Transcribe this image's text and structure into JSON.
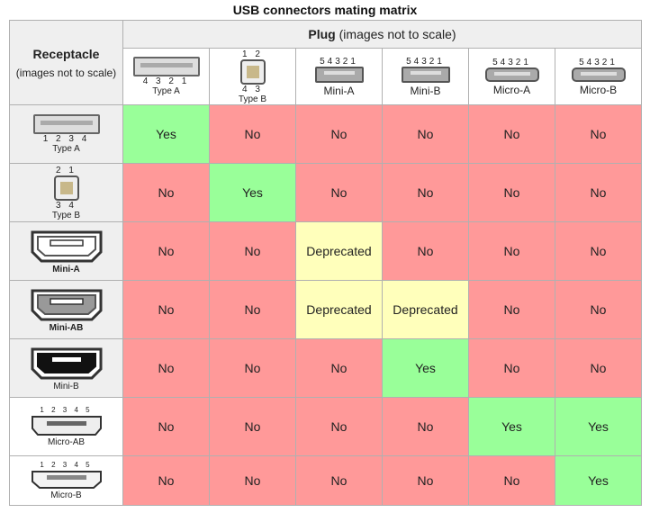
{
  "title": "USB connectors mating matrix",
  "corner": {
    "title": "Receptacle",
    "subtitle": "(images not to scale)"
  },
  "plug_header": {
    "title": "Plug",
    "subtitle": "(images not to scale)"
  },
  "plugs": [
    {
      "label": "Type A",
      "pins": "4 3 2 1"
    },
    {
      "label": "Type B",
      "pins_top": "1 2",
      "pins_bottom": "4 3"
    },
    {
      "label": "Mini-A",
      "pins": "54321"
    },
    {
      "label": "Mini-B",
      "pins": "54321"
    },
    {
      "label": "Micro-A",
      "pins": "54321"
    },
    {
      "label": "Micro-B",
      "pins": "54321"
    }
  ],
  "receptacles": [
    {
      "label": "Type A",
      "pins": "1 2 3 4",
      "cells": [
        "Yes",
        "No",
        "No",
        "No",
        "No",
        "No"
      ]
    },
    {
      "label": "Type B",
      "pins_top": "2 1",
      "pins_bottom": "3 4",
      "cells": [
        "No",
        "Yes",
        "No",
        "No",
        "No",
        "No"
      ]
    },
    {
      "label": "Mini-A",
      "cells": [
        "No",
        "No",
        "Deprecated",
        "No",
        "No",
        "No"
      ]
    },
    {
      "label": "Mini-AB",
      "cells": [
        "No",
        "No",
        "Deprecated",
        "Deprecated",
        "No",
        "No"
      ]
    },
    {
      "label": "Mini-B",
      "cells": [
        "No",
        "No",
        "No",
        "Yes",
        "No",
        "No"
      ]
    },
    {
      "label": "Micro-AB",
      "pins": "1 2 3 4 5",
      "cells": [
        "No",
        "No",
        "No",
        "No",
        "Yes",
        "Yes"
      ]
    },
    {
      "label": "Micro-B",
      "pins": "1 2 3 4 5",
      "cells": [
        "No",
        "No",
        "No",
        "No",
        "No",
        "Yes"
      ]
    }
  ],
  "colors": {
    "yes": "#99ff99",
    "no": "#ff9999",
    "deprecated": "#ffffbb",
    "header_bg": "#efefef",
    "grid": "#b0b0b0"
  }
}
